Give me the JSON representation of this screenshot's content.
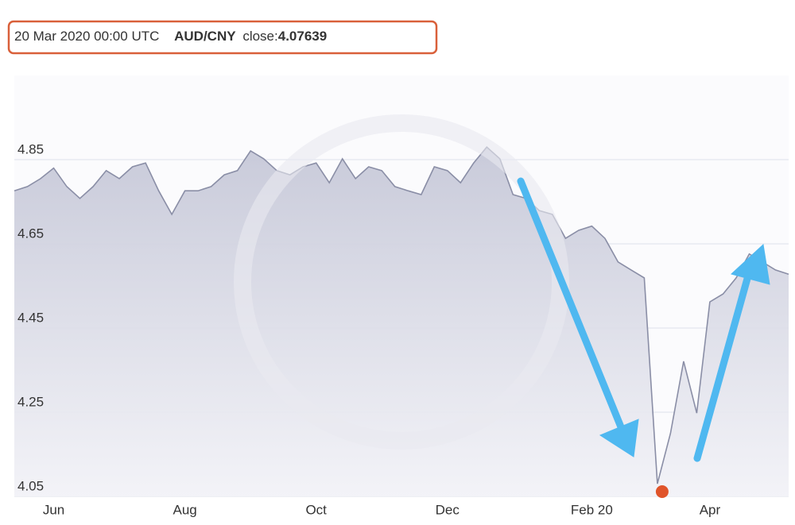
{
  "chart_data": {
    "type": "area",
    "header": {
      "date": "20 Mar 2020 00:00 UTC",
      "pair": "AUD/CNY",
      "close_label": "close:",
      "close": 4.07639
    },
    "categories": [
      null,
      null,
      null,
      "Jun",
      null,
      null,
      null,
      null,
      null,
      null,
      null,
      null,
      null,
      "Aug",
      null,
      null,
      null,
      null,
      null,
      null,
      null,
      null,
      null,
      "Oct",
      null,
      null,
      null,
      null,
      null,
      null,
      null,
      null,
      null,
      "Dec",
      null,
      null,
      null,
      null,
      null,
      null,
      null,
      null,
      null,
      null,
      "Feb 20",
      null,
      null,
      null,
      null,
      null,
      null,
      null,
      null,
      "Apr",
      null,
      null,
      null,
      null,
      null,
      null
    ],
    "values": [
      4.776,
      4.786,
      4.805,
      4.83,
      4.786,
      4.758,
      4.786,
      4.824,
      4.805,
      4.833,
      4.842,
      4.776,
      4.72,
      4.776,
      4.776,
      4.786,
      4.814,
      4.824,
      4.871,
      4.852,
      4.824,
      4.814,
      4.833,
      4.842,
      4.795,
      4.852,
      4.805,
      4.833,
      4.824,
      4.786,
      4.776,
      4.767,
      4.833,
      4.824,
      4.795,
      4.842,
      4.88,
      4.852,
      4.767,
      4.758,
      4.729,
      4.72,
      4.663,
      4.682,
      4.692,
      4.663,
      4.607,
      4.588,
      4.569,
      4.08,
      4.2,
      4.371,
      4.248,
      4.512,
      4.531,
      4.569,
      4.626,
      4.607,
      4.588,
      4.578
    ],
    "color": "#8a8ea6",
    "marker_color": "#e0542a",
    "ylim": [
      4.05,
      5.05
    ],
    "yticks": [
      4.05,
      4.25,
      4.45,
      4.65,
      4.85
    ],
    "grid": true
  }
}
